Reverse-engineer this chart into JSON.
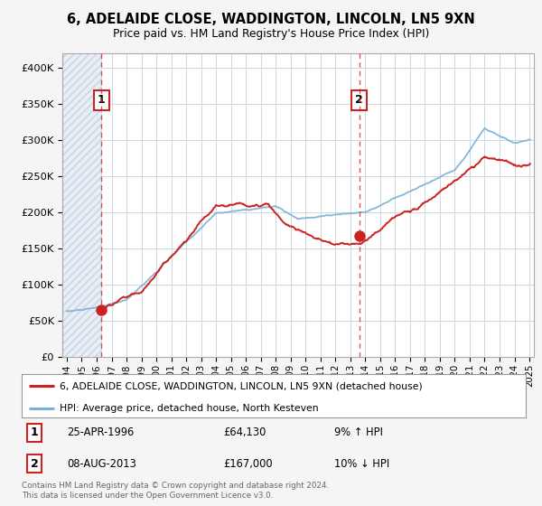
{
  "title": "6, ADELAIDE CLOSE, WADDINGTON, LINCOLN, LN5 9XN",
  "subtitle": "Price paid vs. HM Land Registry's House Price Index (HPI)",
  "ylim": [
    0,
    420000
  ],
  "yticks": [
    0,
    50000,
    100000,
    150000,
    200000,
    250000,
    300000,
    350000,
    400000
  ],
  "ytick_labels": [
    "£0",
    "£50K",
    "£100K",
    "£150K",
    "£200K",
    "£250K",
    "£300K",
    "£350K",
    "£400K"
  ],
  "xlim_start": 1993.7,
  "xlim_end": 2025.3,
  "hpi_color": "#7ab0d4",
  "price_color": "#cc2222",
  "transaction1_date": 1996.32,
  "transaction1_price": 64130,
  "transaction2_date": 2013.59,
  "transaction2_price": 167000,
  "legend_line1": "6, ADELAIDE CLOSE, WADDINGTON, LINCOLN, LN5 9XN (detached house)",
  "legend_line2": "HPI: Average price, detached house, North Kesteven",
  "note1_date": "25-APR-1996",
  "note1_price": "£64,130",
  "note1_hpi": "9% ↑ HPI",
  "note2_date": "08-AUG-2013",
  "note2_price": "£167,000",
  "note2_hpi": "10% ↓ HPI",
  "copyright": "Contains HM Land Registry data © Crown copyright and database right 2024.\nThis data is licensed under the Open Government Licence v3.0.",
  "bg_color": "#f5f5f5",
  "plot_bg": "#ffffff"
}
